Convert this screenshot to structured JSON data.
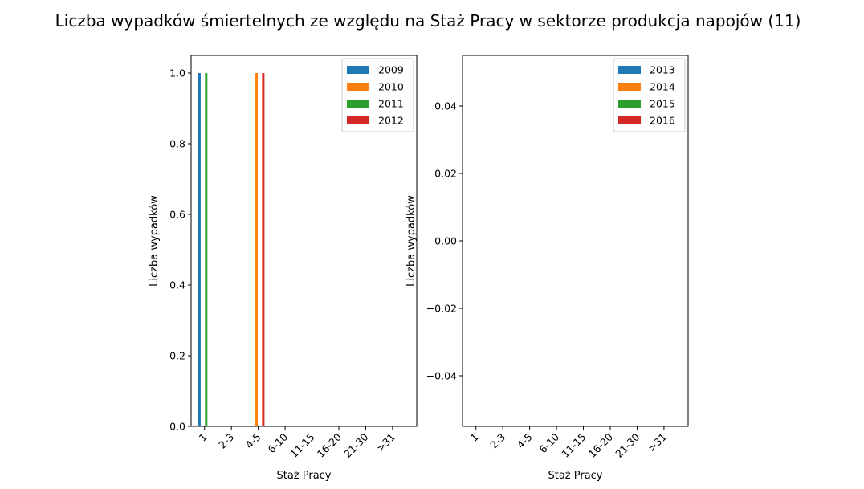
{
  "figure": {
    "title": "Liczba wypadków śmiertelnych ze względu na Staż Pracy w sektorze produkcja napojów  (11)"
  },
  "chart_data": [
    {
      "type": "bar",
      "title": "",
      "xlabel": "Staż Pracy",
      "ylabel": "Liczba wypadków",
      "categories": [
        "1",
        "2-3",
        "4-5",
        "6-10",
        "11-15",
        "16-20",
        "21-30",
        ">31"
      ],
      "series": [
        {
          "name": "2009",
          "color": "#1f77b4",
          "values": [
            1,
            0,
            0,
            0,
            0,
            0,
            0,
            0
          ]
        },
        {
          "name": "2010",
          "color": "#ff7f0e",
          "values": [
            0,
            0,
            1,
            0,
            0,
            0,
            0,
            0
          ]
        },
        {
          "name": "2011",
          "color": "#2ca02c",
          "values": [
            1,
            0,
            0,
            0,
            0,
            0,
            0,
            0
          ]
        },
        {
          "name": "2012",
          "color": "#d62728",
          "values": [
            0,
            0,
            1,
            0,
            0,
            0,
            0,
            0
          ]
        }
      ],
      "ylim": [
        0,
        1.05
      ],
      "yticks": [
        0.0,
        0.2,
        0.4,
        0.6,
        0.8,
        1.0
      ],
      "ytick_labels": [
        "0.0",
        "0.2",
        "0.4",
        "0.6",
        "0.8",
        "1.0"
      ],
      "legend": "top-right",
      "grid": false
    },
    {
      "type": "bar",
      "title": "",
      "xlabel": "Staż Pracy",
      "ylabel": "Liczba wypadków",
      "categories": [
        "1",
        "2-3",
        "4-5",
        "6-10",
        "11-15",
        "16-20",
        "21-30",
        ">31"
      ],
      "series": [
        {
          "name": "2013",
          "color": "#1f77b4",
          "values": [
            0,
            0,
            0,
            0,
            0,
            0,
            0,
            0
          ]
        },
        {
          "name": "2014",
          "color": "#ff7f0e",
          "values": [
            0,
            0,
            0,
            0,
            0,
            0,
            0,
            0
          ]
        },
        {
          "name": "2015",
          "color": "#2ca02c",
          "values": [
            0,
            0,
            0,
            0,
            0,
            0,
            0,
            0
          ]
        },
        {
          "name": "2016",
          "color": "#d62728",
          "values": [
            0,
            0,
            0,
            0,
            0,
            0,
            0,
            0
          ]
        }
      ],
      "ylim": [
        -0.055,
        0.055
      ],
      "yticks": [
        -0.04,
        -0.02,
        0.0,
        0.02,
        0.04
      ],
      "ytick_labels": [
        "−0.04",
        "−0.02",
        "0.00",
        "0.02",
        "0.04"
      ],
      "legend": "top-right",
      "grid": false
    }
  ]
}
